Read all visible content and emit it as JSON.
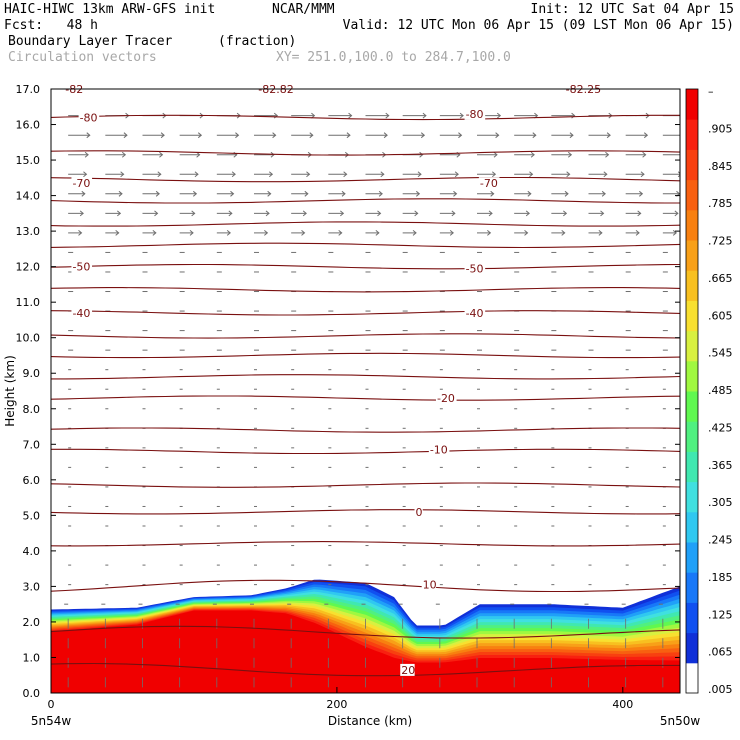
{
  "header": {
    "line1_left": "HAIC-HIWC 13km ARW-GFS init",
    "line1_mid": "NCAR/MMM",
    "line1_right": "Init: 12 UTC Sat 04 Apr 15",
    "line2_left": "Fcst:   48 h",
    "line2_right": "Valid: 12 UTC Mon 06 Apr 15 (09 LST Mon 06 Apr 15)",
    "line3_left": "Boundary Layer Tracer",
    "line3_unit": "(fraction)",
    "line4_left": "Circulation vectors",
    "line4_xy": "XY= 251.0,100.0 to 284.7,100.0"
  },
  "colors": {
    "contour": "#7a1010",
    "vector": "#6e6e6e",
    "colorbar": [
      "#ffffff",
      "#1030d8",
      "#1050f0",
      "#1878f8",
      "#20a0f8",
      "#30c8f0",
      "#40e0e0",
      "#40e8b0",
      "#50f080",
      "#60f850",
      "#a0f840",
      "#d8f040",
      "#f8e030",
      "#f8c020",
      "#f8a018",
      "#f88010",
      "#f86010",
      "#f84010",
      "#f82010",
      "#f00000"
    ]
  },
  "chart_data": {
    "type": "heatmap",
    "title": "Boundary Layer Tracer",
    "units": "(fraction)",
    "overlay": "Circulation vectors",
    "xlabel": "Distance (km)",
    "ylabel": "Height (km)",
    "xlim": [
      0,
      440
    ],
    "ylim": [
      0,
      17
    ],
    "x_ticks": [
      {
        "value": 0,
        "label": "0"
      },
      {
        "value": 200,
        "label": "200"
      },
      {
        "value": 400,
        "label": "400"
      }
    ],
    "x_end_labels": {
      "left": "5n54w",
      "right": "5n50w"
    },
    "y_ticks": [
      {
        "value": 0,
        "label": "0.0"
      },
      {
        "value": 1,
        "label": "1.0"
      },
      {
        "value": 2,
        "label": "2.0"
      },
      {
        "value": 3,
        "label": "3.0"
      },
      {
        "value": 4,
        "label": "4.0"
      },
      {
        "value": 5,
        "label": "5.0"
      },
      {
        "value": 6,
        "label": "6.0"
      },
      {
        "value": 7,
        "label": "7.0"
      },
      {
        "value": 8,
        "label": "8.0"
      },
      {
        "value": 9,
        "label": "9.0"
      },
      {
        "value": 10,
        "label": "10.0"
      },
      {
        "value": 11,
        "label": "11.0"
      },
      {
        "value": 12,
        "label": "12.0"
      },
      {
        "value": 13,
        "label": "13.0"
      },
      {
        "value": 14,
        "label": "14.0"
      },
      {
        "value": 15,
        "label": "15.0"
      },
      {
        "value": 16,
        "label": "16.0"
      },
      {
        "value": 17,
        "label": "17.0"
      }
    ],
    "colorbar_labels": [
      ".005",
      ".065",
      ".125",
      ".185",
      ".245",
      ".305",
      ".365",
      ".425",
      ".485",
      ".545",
      ".605",
      ".665",
      ".725",
      ".785",
      ".845",
      ".905",
      "–"
    ],
    "tracer_layer": {
      "x": [
        0,
        60,
        100,
        140,
        165,
        185,
        220,
        240,
        255,
        275,
        300,
        350,
        400,
        440
      ],
      "top_km": [
        2.35,
        2.4,
        2.7,
        2.75,
        2.95,
        3.2,
        3.1,
        2.7,
        1.9,
        1.9,
        2.5,
        2.5,
        2.4,
        3.0
      ],
      "red_top_km": [
        1.7,
        1.9,
        2.3,
        2.3,
        2.2,
        1.9,
        1.2,
        0.9,
        0.8,
        0.8,
        0.9,
        0.9,
        0.85,
        0.8
      ]
    },
    "isotherm_labels": [
      {
        "value": "-82",
        "x": 10,
        "y": 17.0
      },
      {
        "value": "-82.82",
        "x": 145,
        "y": 17.0
      },
      {
        "value": "-82.25",
        "x": 360,
        "y": 17.0
      },
      {
        "value": "-80",
        "x": 20,
        "y": 16.2
      },
      {
        "value": "-80",
        "x": 290,
        "y": 16.3
      },
      {
        "value": "-70",
        "x": 15,
        "y": 14.35
      },
      {
        "value": "-70",
        "x": 300,
        "y": 14.35
      },
      {
        "value": "-50",
        "x": 15,
        "y": 12.0
      },
      {
        "value": "-50",
        "x": 290,
        "y": 11.95
      },
      {
        "value": "-40",
        "x": 15,
        "y": 10.7
      },
      {
        "value": "-40",
        "x": 290,
        "y": 10.7
      },
      {
        "value": "-20",
        "x": 270,
        "y": 8.3
      },
      {
        "value": "-10",
        "x": 265,
        "y": 6.85
      },
      {
        "value": "0",
        "x": 255,
        "y": 5.1
      },
      {
        "value": "10",
        "x": 260,
        "y": 3.05
      },
      {
        "value": "20",
        "x": 245,
        "y": 0.65
      }
    ],
    "isotherms_km": [
      16.2,
      15.2,
      14.45,
      13.85,
      13.2,
      12.6,
      12.0,
      11.35,
      10.7,
      10.05,
      9.5,
      8.9,
      8.3,
      7.4,
      6.8,
      5.85,
      5.1,
      4.2,
      3.0,
      1.7,
      0.65
    ]
  }
}
